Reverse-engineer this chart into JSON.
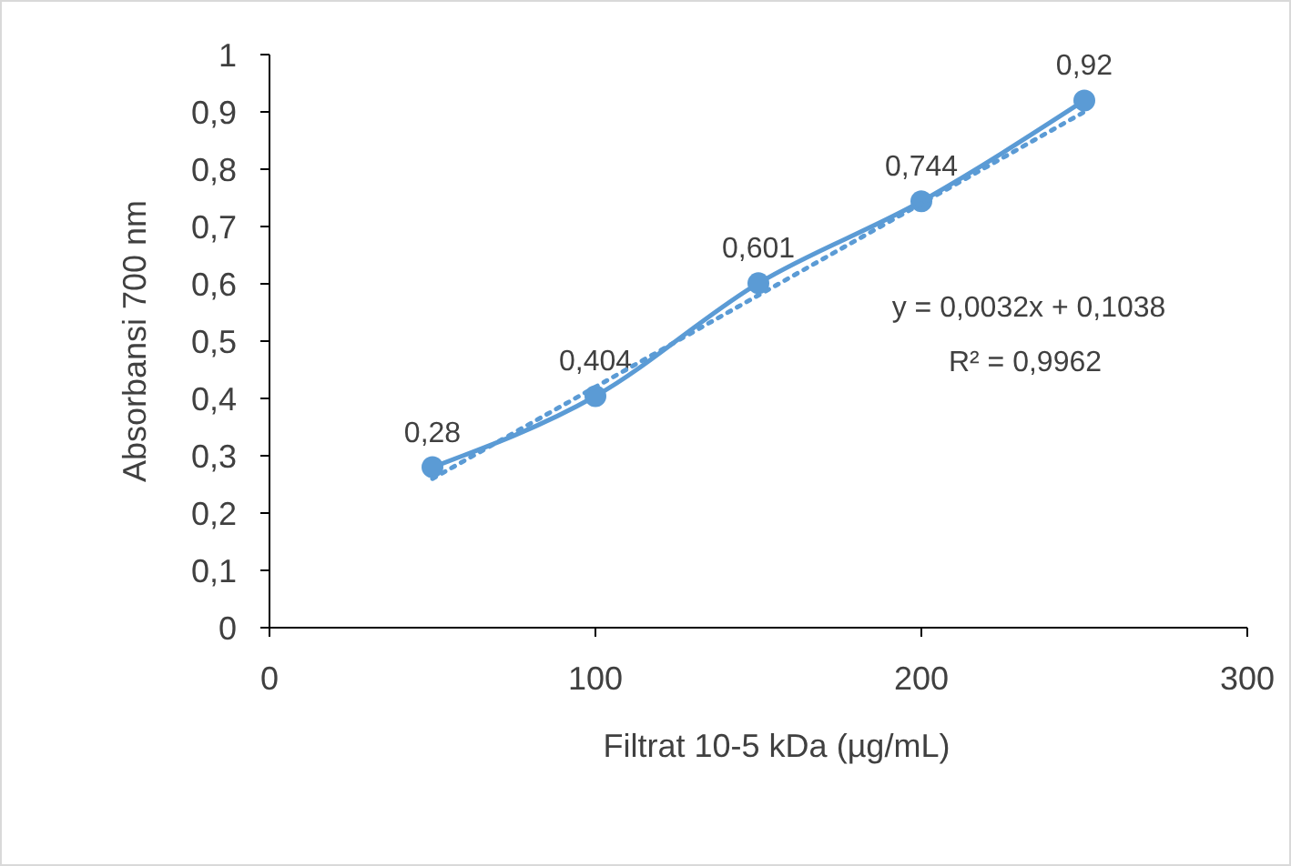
{
  "chart_data": {
    "type": "line",
    "xlabel": "Filtrat 10-5 kDa (µg/mL)",
    "ylabel": "Absorbansi 700 nm",
    "x": [
      50,
      100,
      150,
      200,
      250
    ],
    "series": [
      {
        "color": "#5b9bd5",
        "values": [
          0.28,
          0.404,
          0.601,
          0.744,
          0.92
        ],
        "value_labels": [
          "0,28",
          "0,404",
          "0,601",
          "0,744",
          "0,92"
        ],
        "marker": "circle",
        "line_style": "solid"
      },
      {
        "type": "line",
        "x": [
          50,
          250
        ],
        "color": "#5b9bd5",
        "values": [
          0.26,
          0.9
        ],
        "marker": "none",
        "line_style": "dotted"
      }
    ],
    "xlim": [
      0,
      300
    ],
    "xticks": [
      0,
      100,
      200,
      300
    ],
    "ylim": [
      0,
      1
    ],
    "yticks": [
      0,
      {
        "value": 0.1,
        "label": "0,1"
      },
      {
        "value": 0.2,
        "label": "0,2"
      },
      {
        "value": 0.3,
        "label": "0,3"
      },
      {
        "value": 0.4,
        "label": "0,4"
      },
      {
        "value": 0.5,
        "label": "0,5"
      },
      {
        "value": 0.6,
        "label": "0,6"
      },
      {
        "value": 0.7,
        "label": "0,7"
      },
      {
        "value": 0.8,
        "label": "0,8"
      },
      {
        "value": 0.9,
        "label": "0,9"
      },
      1
    ],
    "annotations": [
      "y = 0,0032x + 0,1038",
      "R² = 0,9962"
    ],
    "grid": false
  }
}
